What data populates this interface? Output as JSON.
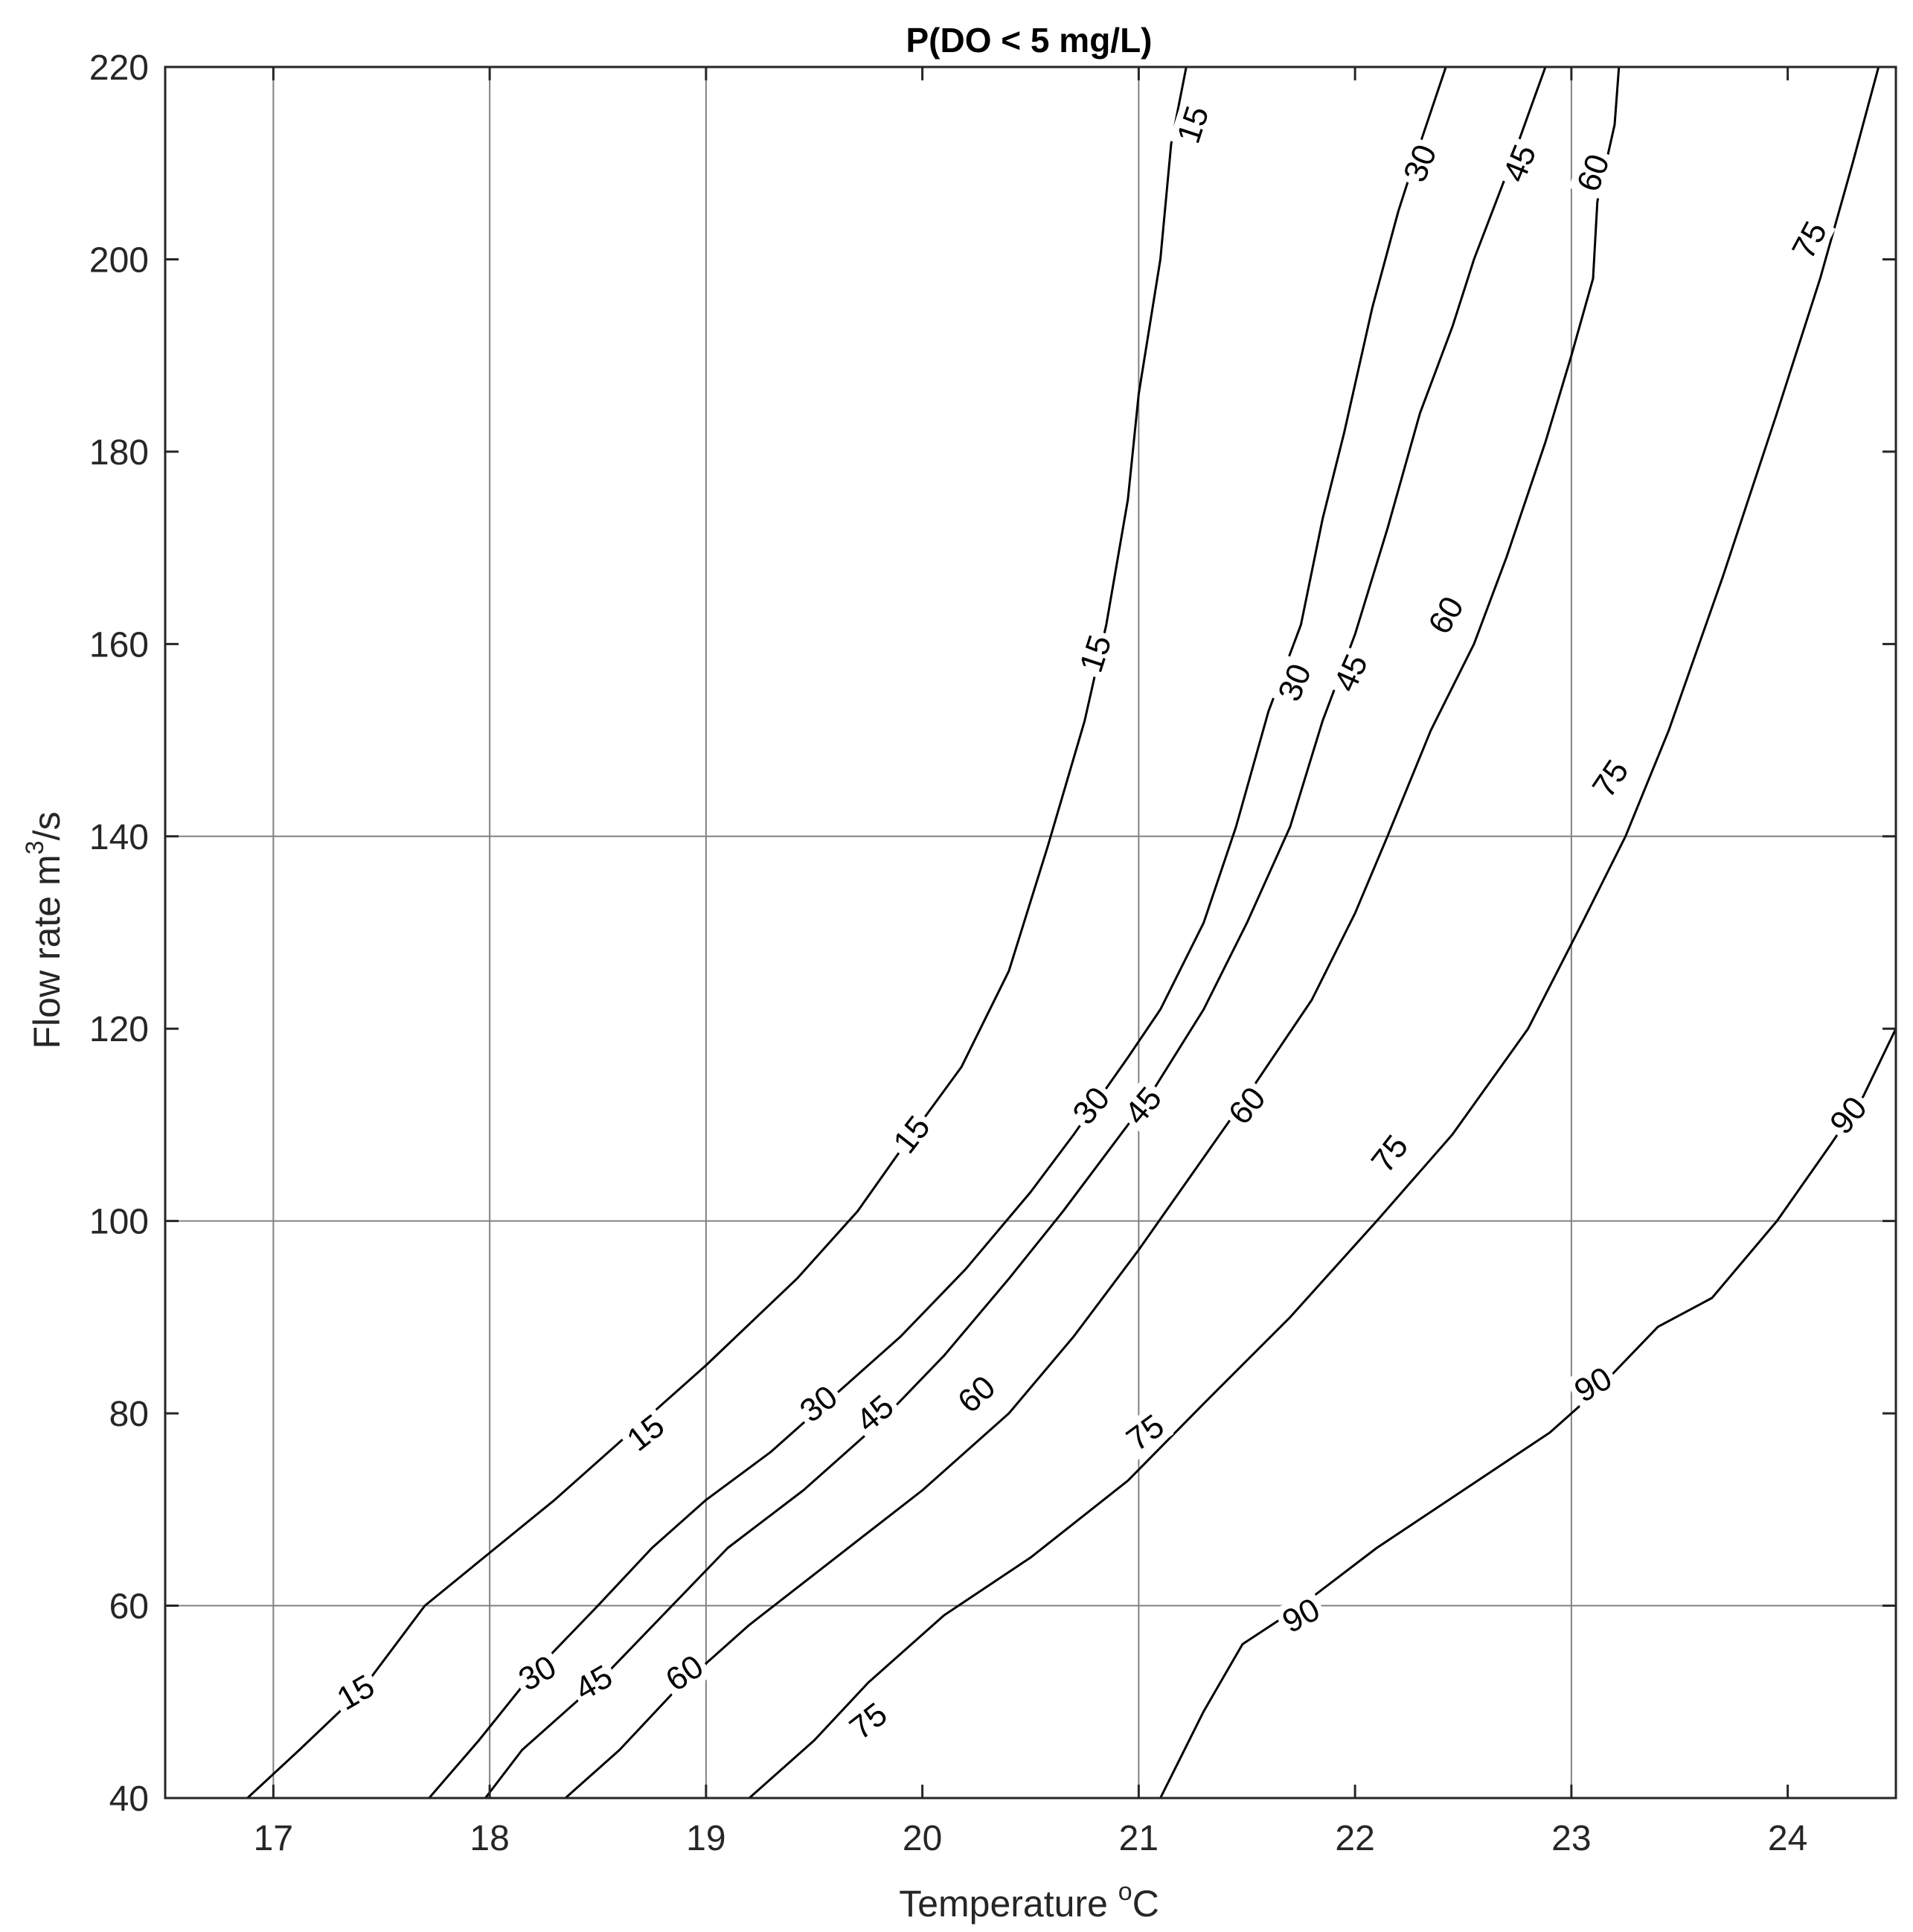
{
  "chart_data": {
    "type": "contour",
    "title": "P(DO < 5 mg/L)",
    "xlabel_text": "Temperature ",
    "xlabel_sup": "o",
    "xlabel_unit": "C",
    "ylabel_text": "Flow rate m",
    "ylabel_sup": "3",
    "ylabel_unit": "/s",
    "xlim": [
      16.5,
      24.5
    ],
    "ylim": [
      40,
      220
    ],
    "xticks": [
      17,
      18,
      19,
      20,
      21,
      22,
      23,
      24
    ],
    "yticks": [
      40,
      60,
      80,
      100,
      120,
      140,
      160,
      180,
      200,
      220
    ],
    "grid": {
      "x": [
        17,
        18,
        19,
        21,
        23
      ],
      "y": [
        60,
        100,
        140
      ]
    },
    "line_color": "#000000",
    "grid_color": "#808080",
    "levels": [
      {
        "level": "15",
        "points": [
          [
            16.88,
            40
          ],
          [
            17.12,
            45
          ],
          [
            17.4,
            51
          ],
          [
            17.7,
            60
          ],
          [
            18.0,
            65.5
          ],
          [
            18.3,
            71
          ],
          [
            18.65,
            78
          ],
          [
            19.0,
            85
          ],
          [
            19.42,
            94
          ],
          [
            19.7,
            101
          ],
          [
            19.92,
            108
          ],
          [
            20.18,
            116
          ],
          [
            20.4,
            126
          ],
          [
            20.58,
            139
          ],
          [
            20.75,
            152
          ],
          [
            20.85,
            162
          ],
          [
            20.95,
            175
          ],
          [
            21.0,
            186
          ],
          [
            21.1,
            200
          ],
          [
            21.15,
            212
          ],
          [
            21.22,
            220
          ]
        ]
      },
      {
        "level": "30",
        "points": [
          [
            17.72,
            40
          ],
          [
            17.95,
            46
          ],
          [
            18.2,
            53
          ],
          [
            18.5,
            60
          ],
          [
            18.75,
            66
          ],
          [
            19.0,
            71
          ],
          [
            19.3,
            76
          ],
          [
            19.6,
            82
          ],
          [
            19.9,
            88
          ],
          [
            20.2,
            95
          ],
          [
            20.5,
            103
          ],
          [
            20.7,
            109
          ],
          [
            20.95,
            117
          ],
          [
            21.1,
            122
          ],
          [
            21.3,
            131
          ],
          [
            21.45,
            141
          ],
          [
            21.6,
            153
          ],
          [
            21.75,
            162
          ],
          [
            21.85,
            173
          ],
          [
            21.95,
            182
          ],
          [
            22.08,
            195
          ],
          [
            22.2,
            205
          ],
          [
            22.3,
            212
          ],
          [
            22.42,
            220
          ]
        ]
      },
      {
        "level": "45",
        "points": [
          [
            17.98,
            40
          ],
          [
            18.15,
            45
          ],
          [
            18.5,
            52
          ],
          [
            18.8,
            59
          ],
          [
            19.1,
            66
          ],
          [
            19.45,
            72
          ],
          [
            19.8,
            79
          ],
          [
            20.1,
            86
          ],
          [
            20.4,
            94
          ],
          [
            20.65,
            101
          ],
          [
            20.85,
            107
          ],
          [
            21.05,
            113
          ],
          [
            21.3,
            122
          ],
          [
            21.5,
            131
          ],
          [
            21.7,
            141
          ],
          [
            21.85,
            152
          ],
          [
            22.0,
            161
          ],
          [
            22.15,
            172
          ],
          [
            22.3,
            184
          ],
          [
            22.45,
            193
          ],
          [
            22.55,
            200
          ],
          [
            22.72,
            210
          ],
          [
            22.8,
            215
          ],
          [
            22.88,
            220
          ]
        ]
      },
      {
        "level": "60",
        "points": [
          [
            18.35,
            40
          ],
          [
            18.6,
            45
          ],
          [
            18.85,
            51
          ],
          [
            19.2,
            58
          ],
          [
            19.6,
            65
          ],
          [
            20.0,
            72
          ],
          [
            20.4,
            80
          ],
          [
            20.7,
            88
          ],
          [
            21.0,
            97
          ],
          [
            21.25,
            105
          ],
          [
            21.5,
            113
          ],
          [
            21.8,
            123
          ],
          [
            22.0,
            132
          ],
          [
            22.15,
            140
          ],
          [
            22.35,
            151
          ],
          [
            22.55,
            160
          ],
          [
            22.7,
            169
          ],
          [
            22.88,
            181
          ],
          [
            23.0,
            190
          ],
          [
            23.1,
            198
          ],
          [
            23.12,
            206
          ],
          [
            23.2,
            214
          ],
          [
            23.22,
            220
          ]
        ]
      },
      {
        "level": "75",
        "points": [
          [
            19.2,
            40
          ],
          [
            19.5,
            46
          ],
          [
            19.75,
            52
          ],
          [
            20.1,
            59
          ],
          [
            20.5,
            65
          ],
          [
            20.95,
            73
          ],
          [
            21.3,
            81
          ],
          [
            21.7,
            90
          ],
          [
            22.1,
            100
          ],
          [
            22.45,
            109
          ],
          [
            22.8,
            120
          ],
          [
            23.05,
            131
          ],
          [
            23.25,
            140
          ],
          [
            23.45,
            151
          ],
          [
            23.7,
            167
          ],
          [
            23.95,
            184
          ],
          [
            24.15,
            198
          ],
          [
            24.3,
            210
          ],
          [
            24.42,
            220
          ]
        ]
      },
      {
        "level": "90",
        "points": [
          [
            21.1,
            40
          ],
          [
            21.3,
            49
          ],
          [
            21.48,
            56
          ],
          [
            21.75,
            60
          ],
          [
            22.1,
            66
          ],
          [
            22.5,
            72
          ],
          [
            22.9,
            78
          ],
          [
            23.1,
            82
          ],
          [
            23.4,
            89
          ],
          [
            23.65,
            92
          ],
          [
            23.95,
            100
          ],
          [
            24.2,
            108
          ],
          [
            24.35,
            113
          ],
          [
            24.5,
            120
          ]
        ]
      }
    ],
    "label_positions": [
      [
        "15",
        17.38,
        51,
        -30
      ],
      [
        "15",
        18.72,
        78,
        -38
      ],
      [
        "15",
        19.95,
        109,
        -52
      ],
      [
        "15",
        20.8,
        159,
        -72
      ],
      [
        "15",
        21.25,
        214,
        -72
      ],
      [
        "30",
        18.22,
        53,
        -30
      ],
      [
        "30",
        19.52,
        81,
        -38
      ],
      [
        "30",
        20.78,
        112,
        -50
      ],
      [
        "30",
        21.72,
        156,
        -68
      ],
      [
        "30",
        22.3,
        210,
        -68
      ],
      [
        "45",
        18.48,
        52,
        -30
      ],
      [
        "45",
        19.78,
        80,
        -40
      ],
      [
        "45",
        21.02,
        112,
        -50
      ],
      [
        "45",
        21.98,
        157,
        -66
      ],
      [
        "45",
        22.76,
        210,
        -68
      ],
      [
        "60",
        18.9,
        53,
        -34
      ],
      [
        "60",
        20.25,
        82,
        -42
      ],
      [
        "60",
        21.5,
        112,
        -50
      ],
      [
        "60",
        22.42,
        163,
        -60
      ],
      [
        "60",
        23.1,
        209,
        -70
      ],
      [
        "75",
        19.75,
        48,
        -38
      ],
      [
        "75",
        21.03,
        78,
        -36
      ],
      [
        "75",
        22.16,
        107,
        -52
      ],
      [
        "75",
        23.18,
        146,
        -56
      ],
      [
        "75",
        24.1,
        202,
        -62
      ],
      [
        "90",
        21.75,
        59,
        -28
      ],
      [
        "90",
        23.1,
        83,
        -30
      ],
      [
        "90",
        24.28,
        111,
        -50
      ]
    ]
  }
}
